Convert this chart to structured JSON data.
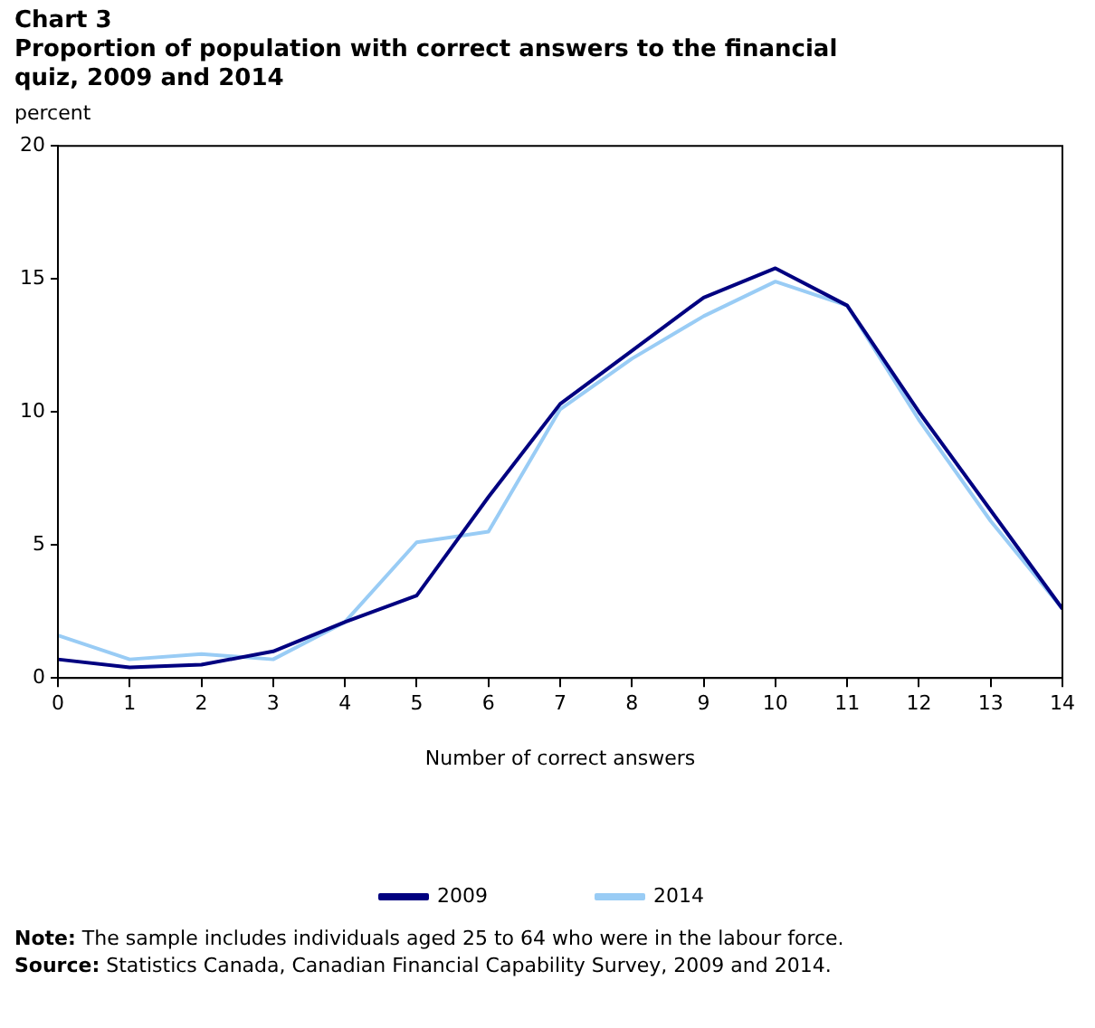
{
  "chart_data": {
    "type": "line",
    "title": "Chart 3",
    "subtitle": "Proportion of population with correct answers to the financial quiz, 2009 and 2014",
    "ylabel": "percent",
    "xlabel": "Number of correct answers",
    "x": [
      0,
      1,
      2,
      3,
      4,
      5,
      6,
      7,
      8,
      9,
      10,
      11,
      12,
      13,
      14
    ],
    "series": [
      {
        "name": "2014",
        "color": "#99ccf5",
        "values": [
          1.6,
          0.7,
          0.9,
          0.7,
          2.1,
          5.1,
          5.5,
          10.1,
          12.0,
          13.6,
          14.9,
          14.0,
          9.7,
          5.9,
          2.6
        ]
      },
      {
        "name": "2009",
        "color": "#000080",
        "values": [
          0.7,
          0.4,
          0.5,
          1.0,
          2.1,
          3.1,
          6.8,
          10.3,
          12.3,
          14.3,
          15.4,
          14.0,
          10.0,
          6.3,
          2.6
        ]
      }
    ],
    "xlim": [
      0,
      14
    ],
    "xticks": [
      0,
      1,
      2,
      3,
      4,
      5,
      6,
      7,
      8,
      9,
      10,
      11,
      12,
      13,
      14
    ],
    "ylim": [
      0,
      20
    ],
    "yticks": [
      0,
      5,
      10,
      15,
      20
    ],
    "grid": false,
    "legend": "bottom",
    "marker": "none",
    "line_style": "solid",
    "annotations": [
      "Note: The sample includes individuals aged 25 to 64 who were in the labour force.",
      "Source: Statistics Canada, Canadian Financial Capability Survey, 2009 and 2014."
    ]
  }
}
